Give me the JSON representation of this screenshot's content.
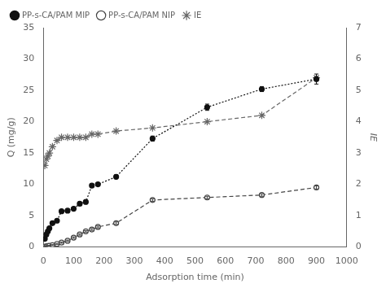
{
  "chart_data": {
    "type": "line",
    "xlabel": "Adsorption time (min)",
    "ylabel": "Q (mg/g)",
    "y2label": "IE",
    "x": [
      5,
      10,
      15,
      20,
      30,
      45,
      60,
      80,
      100,
      120,
      140,
      160,
      180,
      240,
      360,
      540,
      720,
      900
    ],
    "series": [
      {
        "name": "PP-s-CA/PAM MIP",
        "color": "#111111",
        "marker": "circle",
        "line_style": "dotted",
        "values": [
          1.3,
          2.0,
          2.5,
          3.0,
          3.8,
          4.2,
          5.7,
          5.8,
          6.1,
          6.9,
          7.2,
          9.8,
          10.0,
          11.2,
          17.3,
          22.3,
          25.2,
          26.8
        ],
        "yerr": [
          0.12,
          0.12,
          0.12,
          0.12,
          0.12,
          0.12,
          0.15,
          0.15,
          0.2,
          0.2,
          0.2,
          0.25,
          0.25,
          0.3,
          0.4,
          0.5,
          0.4,
          0.8
        ]
      },
      {
        "name": "PP-s-CA/PAM NIP",
        "color": "#444444",
        "marker": "open_circle",
        "line_style": "dashed",
        "values": [
          0.05,
          0.1,
          0.15,
          0.2,
          0.3,
          0.5,
          0.7,
          1.0,
          1.5,
          2.0,
          2.5,
          2.8,
          3.2,
          3.8,
          7.5,
          7.9,
          8.3,
          9.5
        ],
        "yerr": [
          0.05,
          0.05,
          0.05,
          0.05,
          0.08,
          0.08,
          0.1,
          0.1,
          0.12,
          0.12,
          0.12,
          0.15,
          0.15,
          0.2,
          0.2,
          0.2,
          0.2,
          0.25
        ]
      },
      {
        "name": "IE",
        "color": "#666666",
        "marker": "star",
        "line_style": "dashed",
        "axis": "y2",
        "values": [
          2.6,
          2.8,
          2.9,
          3.0,
          3.2,
          3.4,
          3.5,
          3.5,
          3.5,
          3.5,
          3.5,
          3.6,
          3.6,
          3.7,
          3.8,
          4.0,
          4.2,
          5.4
        ]
      }
    ],
    "xlim": [
      0,
      1000
    ],
    "xticks": [
      0,
      100,
      200,
      300,
      400,
      500,
      600,
      700,
      800,
      900,
      1000
    ],
    "ylim": [
      0,
      35
    ],
    "yticks": [
      0,
      5,
      10,
      15,
      20,
      25,
      30,
      35
    ],
    "y2lim": [
      0,
      7
    ],
    "y2ticks": [
      0,
      1,
      2,
      3,
      4,
      5,
      6,
      7
    ],
    "grid": false,
    "legend": "upper left"
  }
}
